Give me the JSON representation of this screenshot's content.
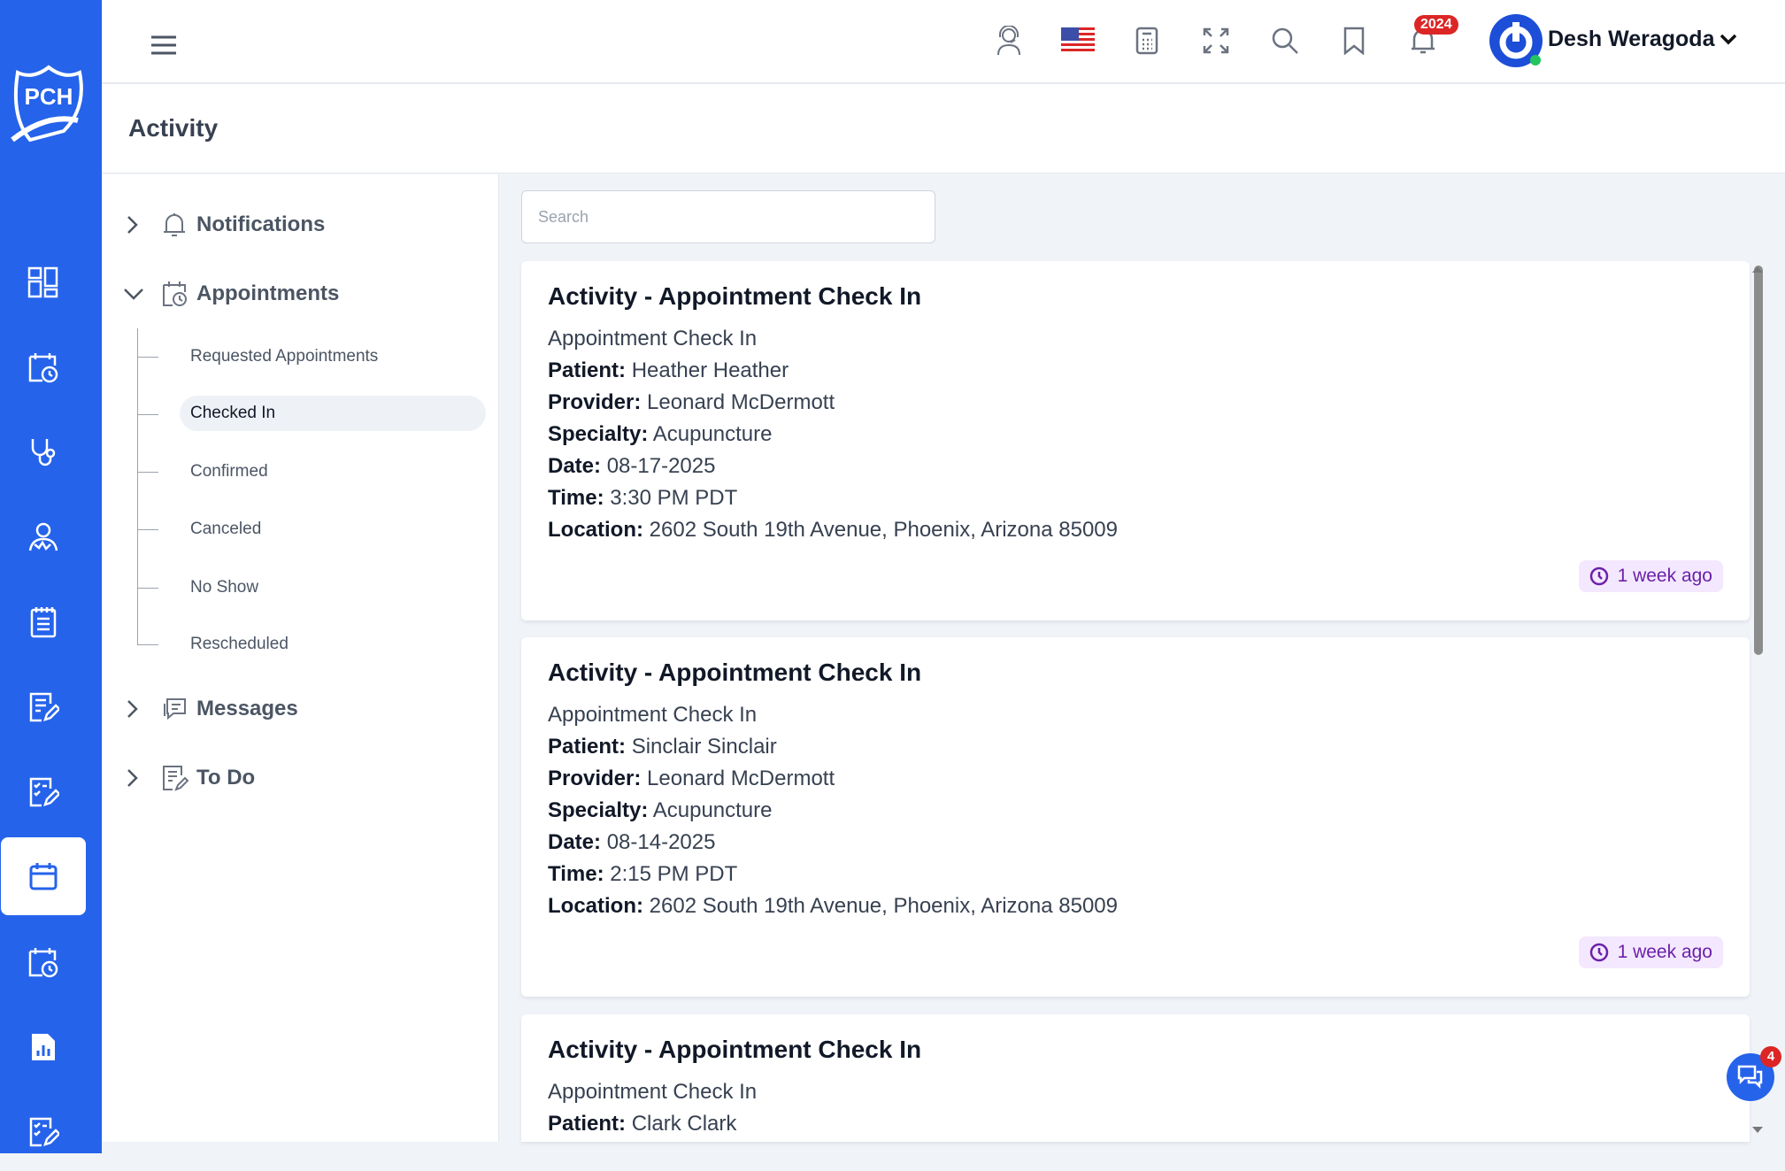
{
  "app": {
    "logo_text": "PCH",
    "brand_color": "#2563eb"
  },
  "sidebar": {
    "items": [
      {
        "icon": "dashboard-icon"
      },
      {
        "icon": "calendar-clock-icon"
      },
      {
        "icon": "stethoscope-icon"
      },
      {
        "icon": "patient-icon"
      },
      {
        "icon": "notebook-icon"
      },
      {
        "icon": "edit-document-icon"
      },
      {
        "icon": "checklist-edit-icon"
      },
      {
        "icon": "calendar-icon",
        "active": true
      },
      {
        "icon": "calendar-clock-icon"
      },
      {
        "icon": "report-icon"
      },
      {
        "icon": "checklist-icon"
      }
    ]
  },
  "topbar": {
    "notification_count": "2024",
    "user_name": "Desh Weragoda",
    "status_color": "#22c55e"
  },
  "header": {
    "title": "Activity"
  },
  "tree": {
    "notifications": "Notifications",
    "appointments": "Appointments",
    "appointment_items": [
      "Requested Appointments",
      "Checked In",
      "Confirmed",
      "Canceled",
      "No Show",
      "Rescheduled"
    ],
    "selected": "Checked In",
    "messages": "Messages",
    "todo": "To Do"
  },
  "search": {
    "placeholder": "Search",
    "value": ""
  },
  "labels": {
    "patient": "Patient:",
    "provider": "Provider:",
    "specialty": "Specialty:",
    "date": "Date:",
    "time": "Time:",
    "location": "Location:"
  },
  "cards": [
    {
      "title": "Activity - Appointment Check In",
      "subtitle": "Appointment Check In",
      "patient": "Heather Heather",
      "provider": "Leonard McDermott",
      "specialty": "Acupuncture",
      "date": "08-17-2025",
      "time": "3:30 PM PDT",
      "location": "2602 South 19th Avenue, Phoenix, Arizona 85009",
      "ago": "1 week ago"
    },
    {
      "title": "Activity - Appointment Check In",
      "subtitle": "Appointment Check In",
      "patient": "Sinclair Sinclair",
      "provider": "Leonard McDermott",
      "specialty": "Acupuncture",
      "date": "08-14-2025",
      "time": "2:15 PM PDT",
      "location": "2602 South 19th Avenue, Phoenix, Arizona 85009",
      "ago": "1 week ago"
    },
    {
      "title": "Activity - Appointment Check In",
      "subtitle": "Appointment Check In",
      "patient": "Clark Clark"
    }
  ],
  "chat": {
    "unread": "4"
  }
}
